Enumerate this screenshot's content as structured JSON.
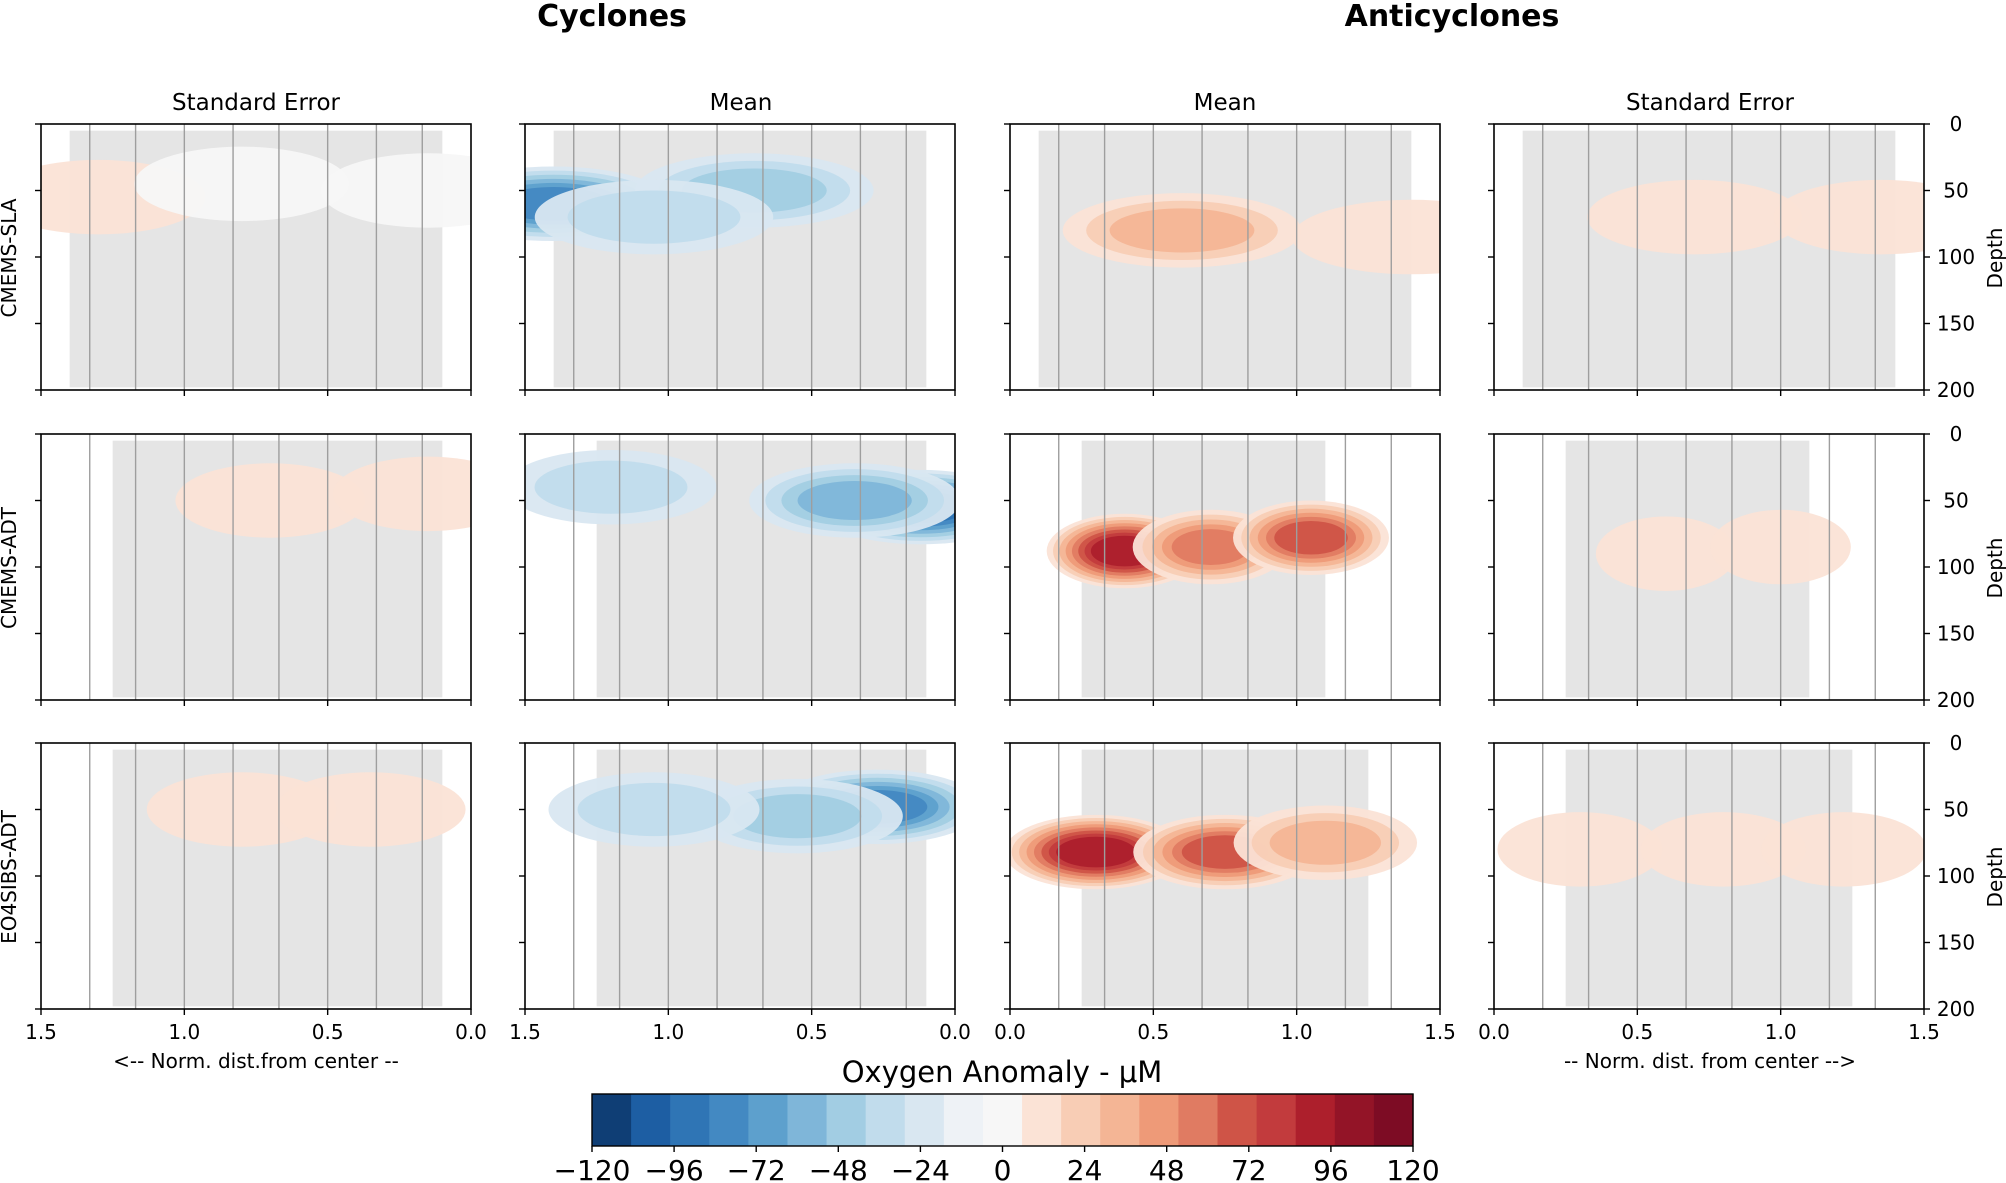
{
  "chart_data": {
    "type": "heatmap",
    "section_titles": [
      "Cyclones",
      "Anticyclones"
    ],
    "column_titles": [
      "Standard Error",
      "Mean",
      "Mean",
      "Standard Error"
    ],
    "row_labels": [
      "CMEMS-SLA",
      "CMEMS-ADT",
      "EO4SIBS-ADT"
    ],
    "y_axis": {
      "label": "Depth",
      "ticks": [
        0,
        50,
        100,
        150,
        200
      ],
      "range": [
        0,
        200
      ],
      "inverted": true
    },
    "x_axis_left": {
      "label": "<-- Norm. dist.from center --",
      "tick_labels": [
        "1.5",
        "1.0",
        "0.5",
        "0.0"
      ],
      "range": [
        1.5,
        0.0
      ]
    },
    "x_axis_right": {
      "label": "-- Norm. dist. from center -->",
      "tick_labels": [
        "0.0",
        "0.5",
        "1.0",
        "1.5"
      ],
      "range": [
        0.0,
        1.5
      ]
    },
    "colorbar": {
      "label": "Oxygen Anomaly - μM",
      "range": [
        -120,
        120
      ],
      "tick_labels": [
        "−120",
        "−96",
        "−72",
        "−48",
        "−24",
        "0",
        "24",
        "48",
        "72",
        "96",
        "120"
      ],
      "levels": [
        -120,
        -108,
        -96,
        -84,
        -72,
        -60,
        -48,
        -36,
        -24,
        -12,
        0,
        12,
        24,
        36,
        48,
        60,
        72,
        84,
        96,
        108,
        120
      ],
      "colors": [
        "#0f3e75",
        "#1d5ea3",
        "#2f75b5",
        "#4389c2",
        "#5da0cd",
        "#7fb6d9",
        "#a2cde3",
        "#c1dcec",
        "#d9e7f1",
        "#eef2f6",
        "#f7f7f7",
        "#fbe3d6",
        "#f8cdb5",
        "#f4b595",
        "#ee9a78",
        "#e07b62",
        "#cf5447",
        "#c23b3d",
        "#ad1f2c",
        "#931427",
        "#7d0c24"
      ]
    },
    "panels": [
      {
        "name": "sla-cyc-se",
        "row": 0,
        "col": 0,
        "stat": "se",
        "type": "cyclone",
        "x_extent": [
          0.1,
          1.4
        ],
        "anomaly_core": [
          {
            "x": 1.3,
            "depth": 55,
            "value": 12
          },
          {
            "x": 0.8,
            "depth": 45,
            "value": 8
          },
          {
            "x": 0.15,
            "depth": 50,
            "value": 10
          }
        ],
        "vertical_lines": [
          1.33,
          1.17,
          1.0,
          0.83,
          0.67,
          0.5,
          0.33,
          0.17
        ]
      },
      {
        "name": "sla-cyc-mean",
        "row": 0,
        "col": 1,
        "stat": "mean",
        "type": "cyclone",
        "x_extent": [
          0.1,
          1.4
        ],
        "anomaly_core": [
          {
            "x": 1.4,
            "depth": 60,
            "value": -80
          },
          {
            "x": 0.7,
            "depth": 50,
            "value": -40
          },
          {
            "x": 1.05,
            "depth": 70,
            "value": -30
          }
        ],
        "vertical_lines": [
          1.33,
          1.17,
          1.0,
          0.83,
          0.67,
          0.5,
          0.33,
          0.17
        ]
      },
      {
        "name": "sla-anti-mean",
        "row": 0,
        "col": 2,
        "stat": "mean",
        "type": "anticyclone",
        "x_extent": [
          0.1,
          1.4
        ],
        "anomaly_core": [
          {
            "x": 0.6,
            "depth": 80,
            "value": 45
          },
          {
            "x": 1.4,
            "depth": 85,
            "value": 20
          }
        ],
        "vertical_lines": [
          0.17,
          0.33,
          0.5,
          0.67,
          0.83,
          1.0,
          1.17,
          1.33
        ]
      },
      {
        "name": "sla-anti-se",
        "row": 0,
        "col": 3,
        "stat": "se",
        "type": "anticyclone",
        "x_extent": [
          0.1,
          1.4
        ],
        "anomaly_core": [
          {
            "x": 0.7,
            "depth": 70,
            "value": 14
          },
          {
            "x": 1.35,
            "depth": 70,
            "value": 20
          }
        ],
        "vertical_lines": [
          0.17,
          0.33,
          0.5,
          0.67,
          0.83,
          1.0,
          1.17,
          1.33
        ]
      },
      {
        "name": "adt-cyc-se",
        "row": 1,
        "col": 0,
        "stat": "se",
        "type": "cyclone",
        "x_extent": [
          0.1,
          1.25
        ],
        "anomaly_core": [
          {
            "x": 0.7,
            "depth": 50,
            "value": 12
          },
          {
            "x": 0.15,
            "depth": 45,
            "value": 18
          }
        ],
        "vertical_lines": [
          1.33,
          1.17,
          1.0,
          0.83,
          0.67,
          0.5,
          0.33,
          0.17
        ]
      },
      {
        "name": "adt-cyc-mean",
        "row": 1,
        "col": 1,
        "stat": "mean",
        "type": "cyclone",
        "x_extent": [
          0.1,
          1.25
        ],
        "anomaly_core": [
          {
            "x": 0.12,
            "depth": 55,
            "value": -90
          },
          {
            "x": 0.35,
            "depth": 50,
            "value": -55
          },
          {
            "x": 1.2,
            "depth": 40,
            "value": -25
          }
        ],
        "vertical_lines": [
          1.33,
          1.17,
          1.0,
          0.83,
          0.67,
          0.5,
          0.33,
          0.17
        ]
      },
      {
        "name": "adt-anti-mean",
        "row": 1,
        "col": 2,
        "stat": "mean",
        "type": "anticyclone",
        "x_extent": [
          0.25,
          1.1
        ],
        "anomaly_core": [
          {
            "x": 0.4,
            "depth": 88,
            "value": 100
          },
          {
            "x": 0.7,
            "depth": 85,
            "value": 60
          },
          {
            "x": 1.05,
            "depth": 78,
            "value": 80
          }
        ],
        "vertical_lines": [
          0.17,
          0.33,
          0.5,
          0.67,
          0.83,
          1.0,
          1.17,
          1.33
        ]
      },
      {
        "name": "adt-anti-se",
        "row": 1,
        "col": 3,
        "stat": "se",
        "type": "anticyclone",
        "x_extent": [
          0.25,
          1.1
        ],
        "anomaly_core": [
          {
            "x": 0.6,
            "depth": 90,
            "value": 14
          },
          {
            "x": 1.0,
            "depth": 85,
            "value": 12
          }
        ],
        "vertical_lines": [
          0.17,
          0.33,
          0.5,
          0.67,
          0.83,
          1.0,
          1.17,
          1.33
        ]
      },
      {
        "name": "eo4-cyc-se",
        "row": 2,
        "col": 0,
        "stat": "se",
        "type": "cyclone",
        "x_extent": [
          0.1,
          1.25
        ],
        "anomaly_core": [
          {
            "x": 0.8,
            "depth": 50,
            "value": 12
          },
          {
            "x": 0.35,
            "depth": 50,
            "value": 16
          }
        ],
        "vertical_lines": [
          1.33,
          1.17,
          1.0,
          0.83,
          0.67,
          0.5,
          0.33,
          0.17
        ]
      },
      {
        "name": "eo4-cyc-mean",
        "row": 2,
        "col": 1,
        "stat": "mean",
        "type": "cyclone",
        "x_extent": [
          0.1,
          1.25
        ],
        "anomaly_core": [
          {
            "x": 0.27,
            "depth": 48,
            "value": -75
          },
          {
            "x": 0.55,
            "depth": 55,
            "value": -40
          },
          {
            "x": 1.05,
            "depth": 50,
            "value": -30
          }
        ],
        "vertical_lines": [
          1.33,
          1.17,
          1.0,
          0.83,
          0.67,
          0.5,
          0.33,
          0.17
        ]
      },
      {
        "name": "eo4-anti-mean",
        "row": 2,
        "col": 2,
        "stat": "mean",
        "type": "anticyclone",
        "x_extent": [
          0.25,
          1.25
        ],
        "anomaly_core": [
          {
            "x": 0.3,
            "depth": 82,
            "value": 100
          },
          {
            "x": 0.75,
            "depth": 82,
            "value": 80
          },
          {
            "x": 1.1,
            "depth": 75,
            "value": 40
          }
        ],
        "vertical_lines": [
          0.17,
          0.33,
          0.5,
          0.67,
          0.83,
          1.0,
          1.17,
          1.33
        ]
      },
      {
        "name": "eo4-anti-se",
        "row": 2,
        "col": 3,
        "stat": "se",
        "type": "anticyclone",
        "x_extent": [
          0.25,
          1.25
        ],
        "anomaly_core": [
          {
            "x": 0.3,
            "depth": 80,
            "value": 14
          },
          {
            "x": 0.8,
            "depth": 80,
            "value": 12
          },
          {
            "x": 1.22,
            "depth": 80,
            "value": 20
          }
        ],
        "vertical_lines": [
          0.17,
          0.33,
          0.5,
          0.67,
          0.83,
          1.0,
          1.17,
          1.33
        ]
      }
    ]
  }
}
